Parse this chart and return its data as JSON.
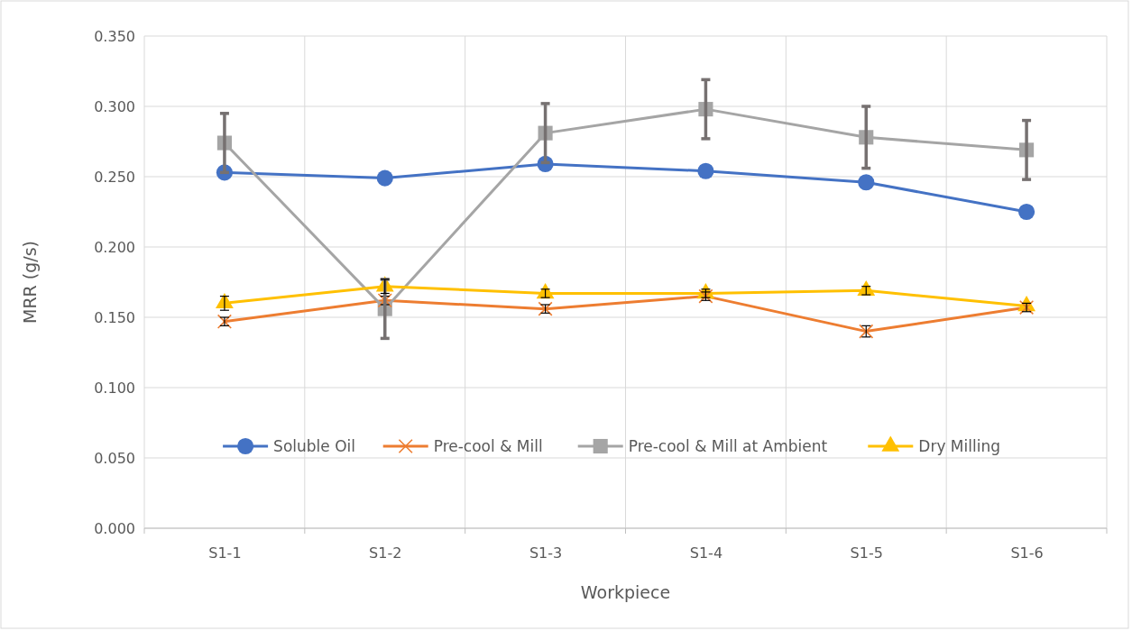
{
  "chart_data": {
    "type": "line",
    "xlabel": "Workpiece",
    "ylabel": "MRR (g/s)",
    "categories": [
      "S1-1",
      "S1-2",
      "S1-3",
      "S1-4",
      "S1-5",
      "S1-6"
    ],
    "ylim": [
      0,
      0.35
    ],
    "yticks": [
      {
        "value": 0,
        "label": "0.000"
      },
      {
        "value": 0.05,
        "label": "0.050"
      },
      {
        "value": 0.1,
        "label": "0.100"
      },
      {
        "value": 0.15,
        "label": "0.150"
      },
      {
        "value": 0.2,
        "label": "0.200"
      },
      {
        "value": 0.25,
        "label": "0.250"
      },
      {
        "value": 0.3,
        "label": "0.300"
      },
      {
        "value": 0.35,
        "label": "0.350"
      }
    ],
    "grid": true,
    "legend": "bottom",
    "series": [
      {
        "name": "Soluble Oil",
        "color": "#4472c4",
        "marker": "circle",
        "values": [
          0.253,
          0.249,
          0.259,
          0.254,
          0.246,
          0.225
        ]
      },
      {
        "name": "Pre-cool & Mill",
        "color": "#ed7d31",
        "marker": "cross",
        "values": [
          0.147,
          0.162,
          0.156,
          0.165,
          0.14,
          0.157
        ],
        "errors": [
          0.003,
          0.003,
          0.003,
          0.003,
          0.004,
          0.003
        ]
      },
      {
        "name": "Pre-cool & Mill at Ambient",
        "color": "#a5a5a5",
        "marker": "square",
        "values": [
          0.274,
          0.156,
          0.281,
          0.298,
          0.278,
          0.269
        ],
        "errors": [
          0.021,
          0.021,
          0.021,
          0.021,
          0.022,
          0.021
        ]
      },
      {
        "name": "Dry Milling",
        "color": "#ffc000",
        "marker": "triangle",
        "values": [
          0.16,
          0.172,
          0.167,
          0.167,
          0.169,
          0.158
        ],
        "errors": [
          0.005,
          0.005,
          0.003,
          0.003,
          0.003,
          null
        ]
      }
    ]
  }
}
